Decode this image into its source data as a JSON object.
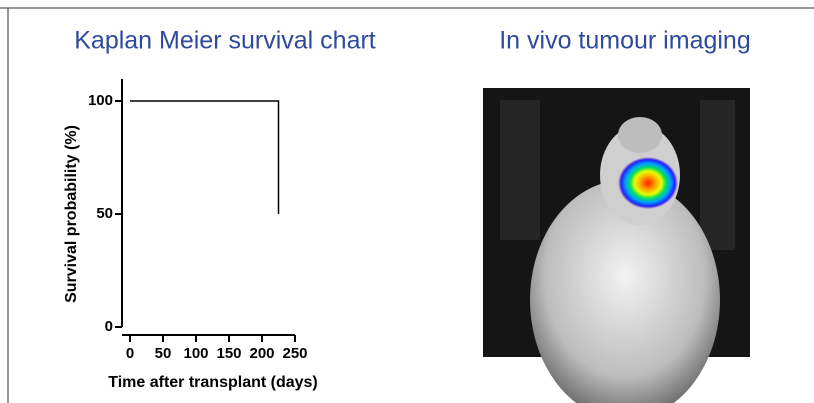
{
  "chart_data": {
    "type": "line",
    "title": "Kaplan Meier survival chart",
    "x_label": "Time after transplant (days)",
    "y_label": "Survival probability (%)",
    "step": true,
    "series": [
      {
        "color": "#000000",
        "x": [
          0,
          225,
          225
        ],
        "values": [
          100,
          100,
          50
        ]
      }
    ],
    "xlim": [
      0,
      250
    ],
    "xticks": [
      0,
      50,
      100,
      150,
      200,
      250
    ],
    "ylim": [
      0,
      100
    ],
    "yticks": [
      0,
      50,
      100
    ]
  },
  "image_panel": {
    "title": "In vivo tumour imaging"
  }
}
